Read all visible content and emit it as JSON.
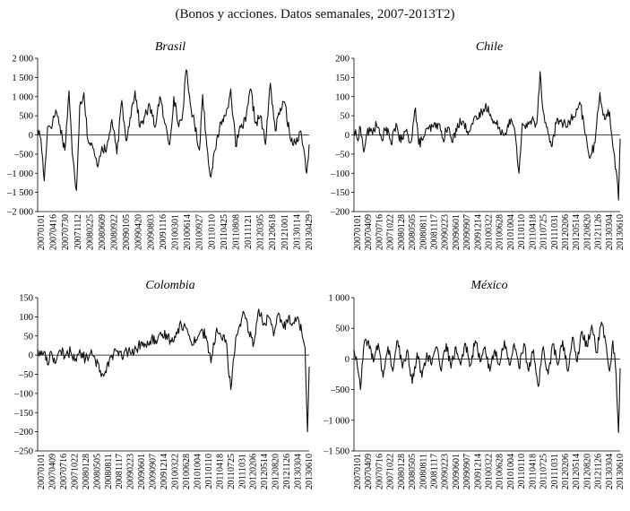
{
  "subtitle": "(Bonos y acciones. Datos semanales, 2007-2013T2)",
  "chart_data": [
    {
      "type": "line",
      "title": "Brasil",
      "ylim": [
        -2000,
        2000
      ],
      "yticks": [
        2000,
        1500,
        1000,
        500,
        0,
        -500,
        -1000,
        -1500,
        -2000
      ],
      "ytick_labels": [
        "2 000",
        "1 500",
        "1 000",
        "500",
        "0",
        "–500",
        "–1 000",
        "–1 500",
        "–2 000"
      ],
      "xtick_labels": [
        "20070101",
        "20070416",
        "20070730",
        "20071112",
        "20080225",
        "20080609",
        "20080922",
        "20090105",
        "20090420",
        "20090803",
        "20091116",
        "20100301",
        "20100614",
        "20100927",
        "20110110",
        "20110425",
        "20110808",
        "20111121",
        "20120305",
        "20120618",
        "20121001",
        "20130114",
        "20130429"
      ],
      "n_points": 330,
      "keypoints": [
        [
          0,
          150
        ],
        [
          4,
          -100
        ],
        [
          8,
          -1200
        ],
        [
          12,
          200
        ],
        [
          18,
          300
        ],
        [
          22,
          650
        ],
        [
          27,
          250
        ],
        [
          33,
          -400
        ],
        [
          38,
          1150
        ],
        [
          42,
          -500
        ],
        [
          47,
          -1450
        ],
        [
          51,
          750
        ],
        [
          56,
          1100
        ],
        [
          61,
          -150
        ],
        [
          67,
          -350
        ],
        [
          72,
          -800
        ],
        [
          78,
          -300
        ],
        [
          83,
          -450
        ],
        [
          90,
          400
        ],
        [
          96,
          -500
        ],
        [
          102,
          900
        ],
        [
          107,
          -150
        ],
        [
          112,
          450
        ],
        [
          118,
          1150
        ],
        [
          124,
          200
        ],
        [
          130,
          500
        ],
        [
          136,
          750
        ],
        [
          142,
          200
        ],
        [
          148,
          1000
        ],
        [
          154,
          300
        ],
        [
          160,
          -250
        ],
        [
          165,
          1000
        ],
        [
          170,
          300
        ],
        [
          175,
          400
        ],
        [
          180,
          1700
        ],
        [
          185,
          800
        ],
        [
          190,
          300
        ],
        [
          196,
          -400
        ],
        [
          200,
          1050
        ],
        [
          205,
          -300
        ],
        [
          210,
          -1100
        ],
        [
          215,
          -400
        ],
        [
          222,
          350
        ],
        [
          228,
          500
        ],
        [
          234,
          1200
        ],
        [
          240,
          -300
        ],
        [
          246,
          200
        ],
        [
          252,
          350
        ],
        [
          258,
          1200
        ],
        [
          264,
          300
        ],
        [
          270,
          500
        ],
        [
          276,
          -250
        ],
        [
          282,
          1350
        ],
        [
          288,
          100
        ],
        [
          294,
          700
        ],
        [
          300,
          800
        ],
        [
          306,
          -100
        ],
        [
          312,
          -200
        ],
        [
          318,
          100
        ],
        [
          322,
          -300
        ],
        [
          326,
          -1000
        ],
        [
          329,
          -250
        ]
      ]
    },
    {
      "type": "line",
      "title": "Chile",
      "ylim": [
        -200,
        200
      ],
      "yticks": [
        200,
        150,
        100,
        50,
        0,
        -50,
        -100,
        -150,
        -200
      ],
      "ytick_labels": [
        "200",
        "150",
        "100",
        "50",
        "0",
        "–50",
        "–100",
        "–150",
        "–200"
      ],
      "xtick_labels": [
        "20070101",
        "20070409",
        "20070716",
        "20071022",
        "20080128",
        "20080505",
        "20080811",
        "20081117",
        "20090223",
        "20090601",
        "20090907",
        "20091214",
        "20100322",
        "20100628",
        "20101004",
        "20110110",
        "20110418",
        "20110725",
        "20111031",
        "20120206",
        "20120514",
        "20120820",
        "20121126",
        "20130304",
        "20130610"
      ],
      "n_points": 330,
      "keypoints": [
        [
          0,
          10
        ],
        [
          4,
          -10
        ],
        [
          8,
          20
        ],
        [
          12,
          -45
        ],
        [
          16,
          5
        ],
        [
          22,
          10
        ],
        [
          28,
          25
        ],
        [
          34,
          -10
        ],
        [
          40,
          20
        ],
        [
          46,
          -25
        ],
        [
          52,
          30
        ],
        [
          58,
          -20
        ],
        [
          64,
          10
        ],
        [
          70,
          -20
        ],
        [
          76,
          70
        ],
        [
          80,
          -25
        ],
        [
          86,
          -5
        ],
        [
          92,
          15
        ],
        [
          98,
          20
        ],
        [
          104,
          30
        ],
        [
          110,
          -10
        ],
        [
          116,
          20
        ],
        [
          122,
          -20
        ],
        [
          128,
          30
        ],
        [
          134,
          35
        ],
        [
          140,
          10
        ],
        [
          146,
          30
        ],
        [
          152,
          40
        ],
        [
          158,
          60
        ],
        [
          162,
          70
        ],
        [
          166,
          75
        ],
        [
          170,
          40
        ],
        [
          174,
          30
        ],
        [
          180,
          20
        ],
        [
          186,
          0
        ],
        [
          192,
          40
        ],
        [
          198,
          20
        ],
        [
          204,
          -100
        ],
        [
          208,
          30
        ],
        [
          214,
          20
        ],
        [
          220,
          40
        ],
        [
          226,
          30
        ],
        [
          230,
          165
        ],
        [
          234,
          60
        ],
        [
          238,
          20
        ],
        [
          244,
          -30
        ],
        [
          250,
          30
        ],
        [
          256,
          40
        ],
        [
          262,
          20
        ],
        [
          268,
          40
        ],
        [
          274,
          50
        ],
        [
          280,
          80
        ],
        [
          286,
          0
        ],
        [
          292,
          -60
        ],
        [
          298,
          -20
        ],
        [
          304,
          110
        ],
        [
          310,
          40
        ],
        [
          316,
          60
        ],
        [
          320,
          -30
        ],
        [
          324,
          -90
        ],
        [
          327,
          -170
        ],
        [
          329,
          -10
        ]
      ]
    },
    {
      "type": "line",
      "title": "Colombia",
      "ylim": [
        -250,
        150
      ],
      "yticks": [
        150,
        100,
        50,
        0,
        -50,
        -100,
        -150,
        -200,
        -250
      ],
      "ytick_labels": [
        "150",
        "100",
        "50",
        "0",
        "–50",
        "–100",
        "–150",
        "–200",
        "–250"
      ],
      "xtick_labels": [
        "20070101",
        "20070409",
        "20070716",
        "20071022",
        "20080128",
        "20080505",
        "20080811",
        "20081117",
        "20090223",
        "20090601",
        "20090907",
        "20091214",
        "20100322",
        "20100628",
        "20101004",
        "20110110",
        "20110418",
        "20110725",
        "20111031",
        "20120206",
        "20120514",
        "20120820",
        "20121126",
        "20130304",
        "20130610"
      ],
      "n_points": 330,
      "keypoints": [
        [
          0,
          15
        ],
        [
          4,
          0
        ],
        [
          8,
          10
        ],
        [
          12,
          -25
        ],
        [
          16,
          10
        ],
        [
          22,
          -20
        ],
        [
          28,
          10
        ],
        [
          34,
          0
        ],
        [
          40,
          10
        ],
        [
          46,
          -10
        ],
        [
          52,
          5
        ],
        [
          58,
          -10
        ],
        [
          64,
          5
        ],
        [
          70,
          -15
        ],
        [
          76,
          -40
        ],
        [
          80,
          -55
        ],
        [
          84,
          -25
        ],
        [
          90,
          0
        ],
        [
          96,
          10
        ],
        [
          102,
          -5
        ],
        [
          108,
          10
        ],
        [
          114,
          5
        ],
        [
          120,
          15
        ],
        [
          126,
          35
        ],
        [
          132,
          20
        ],
        [
          138,
          45
        ],
        [
          144,
          30
        ],
        [
          150,
          50
        ],
        [
          156,
          55
        ],
        [
          162,
          35
        ],
        [
          168,
          60
        ],
        [
          174,
          80
        ],
        [
          180,
          70
        ],
        [
          186,
          35
        ],
        [
          192,
          40
        ],
        [
          198,
          65
        ],
        [
          204,
          50
        ],
        [
          210,
          -20
        ],
        [
          216,
          60
        ],
        [
          222,
          50
        ],
        [
          228,
          40
        ],
        [
          234,
          -90
        ],
        [
          240,
          45
        ],
        [
          246,
          75
        ],
        [
          250,
          110
        ],
        [
          256,
          60
        ],
        [
          262,
          30
        ],
        [
          268,
          120
        ],
        [
          274,
          80
        ],
        [
          280,
          100
        ],
        [
          286,
          50
        ],
        [
          292,
          110
        ],
        [
          298,
          70
        ],
        [
          304,
          100
        ],
        [
          310,
          85
        ],
        [
          316,
          95
        ],
        [
          320,
          60
        ],
        [
          324,
          20
        ],
        [
          327,
          -200
        ],
        [
          329,
          -30
        ]
      ]
    },
    {
      "type": "line",
      "title": "México",
      "ylim": [
        -1500,
        1000
      ],
      "yticks": [
        1000,
        500,
        0,
        -500,
        -1000,
        -1500
      ],
      "ytick_labels": [
        "1 000",
        "500",
        "0",
        "–500",
        "–1 000",
        "–1 500"
      ],
      "xtick_labels": [
        "20070101",
        "20070409",
        "20070716",
        "20071022",
        "20080128",
        "20080505",
        "20080811",
        "20081117",
        "20090223",
        "20090601",
        "20090907",
        "20091214",
        "20100322",
        "20100628",
        "20101004",
        "20110110",
        "20110418",
        "20110725",
        "20111031",
        "20120206",
        "20120514",
        "20120820",
        "20121126",
        "20130304",
        "20130610"
      ],
      "n_points": 330,
      "keypoints": [
        [
          0,
          150
        ],
        [
          4,
          -100
        ],
        [
          8,
          -500
        ],
        [
          12,
          200
        ],
        [
          18,
          300
        ],
        [
          24,
          -50
        ],
        [
          30,
          250
        ],
        [
          36,
          -300
        ],
        [
          42,
          200
        ],
        [
          48,
          -200
        ],
        [
          54,
          300
        ],
        [
          60,
          -150
        ],
        [
          66,
          150
        ],
        [
          72,
          -400
        ],
        [
          78,
          100
        ],
        [
          84,
          -300
        ],
        [
          90,
          100
        ],
        [
          96,
          -100
        ],
        [
          102,
          200
        ],
        [
          108,
          -200
        ],
        [
          114,
          250
        ],
        [
          120,
          -150
        ],
        [
          126,
          200
        ],
        [
          132,
          -100
        ],
        [
          138,
          250
        ],
        [
          144,
          -100
        ],
        [
          150,
          300
        ],
        [
          156,
          -50
        ],
        [
          162,
          200
        ],
        [
          168,
          -200
        ],
        [
          174,
          150
        ],
        [
          180,
          -100
        ],
        [
          186,
          300
        ],
        [
          192,
          -100
        ],
        [
          198,
          250
        ],
        [
          204,
          -150
        ],
        [
          210,
          250
        ],
        [
          216,
          -200
        ],
        [
          222,
          150
        ],
        [
          228,
          -450
        ],
        [
          234,
          200
        ],
        [
          240,
          -250
        ],
        [
          246,
          250
        ],
        [
          252,
          -100
        ],
        [
          258,
          300
        ],
        [
          264,
          -200
        ],
        [
          270,
          350
        ],
        [
          276,
          -50
        ],
        [
          282,
          450
        ],
        [
          288,
          200
        ],
        [
          294,
          550
        ],
        [
          300,
          100
        ],
        [
          306,
          600
        ],
        [
          312,
          200
        ],
        [
          316,
          -200
        ],
        [
          320,
          300
        ],
        [
          324,
          -250
        ],
        [
          327,
          -1200
        ],
        [
          329,
          -150
        ]
      ]
    }
  ]
}
